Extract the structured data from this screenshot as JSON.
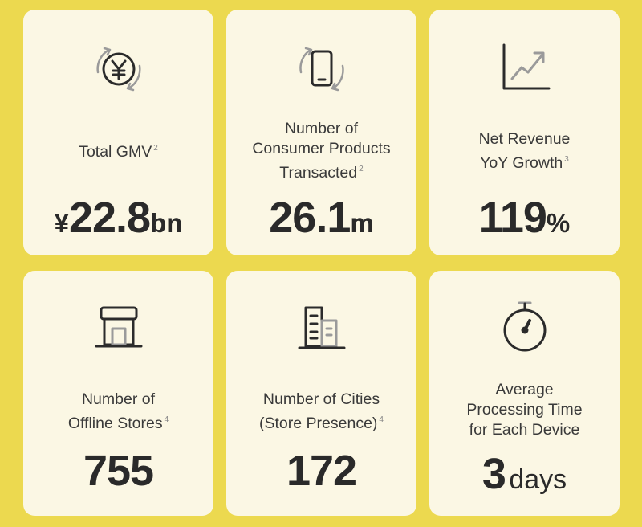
{
  "cards": [
    {
      "icon": "yen-exchange-icon",
      "label_lines": [
        "Total GMV"
      ],
      "footnote": "2",
      "prefix": "¥",
      "value": "22.8",
      "unit": "bn"
    },
    {
      "icon": "phone-exchange-icon",
      "label_lines": [
        "Number of",
        "Consumer Products",
        "Transacted"
      ],
      "footnote": "2",
      "prefix": "",
      "value": "26.1",
      "unit": "m"
    },
    {
      "icon": "growth-chart-icon",
      "label_lines": [
        "Net Revenue",
        "YoY Growth"
      ],
      "footnote": "3",
      "prefix": "",
      "value": "119",
      "unit": "%"
    },
    {
      "icon": "store-icon",
      "label_lines": [
        "Number of",
        "Offline Stores"
      ],
      "footnote": "4",
      "prefix": "",
      "value": "755",
      "unit": ""
    },
    {
      "icon": "buildings-icon",
      "label_lines": [
        "Number of Cities",
        "(Store Presence)"
      ],
      "footnote": "4",
      "prefix": "",
      "value": "172",
      "unit": ""
    },
    {
      "icon": "stopwatch-icon",
      "label_lines": [
        "Average",
        "Processing Time",
        "for Each Device"
      ],
      "footnote": "",
      "prefix": "",
      "value": "3",
      "unit": "days"
    }
  ]
}
